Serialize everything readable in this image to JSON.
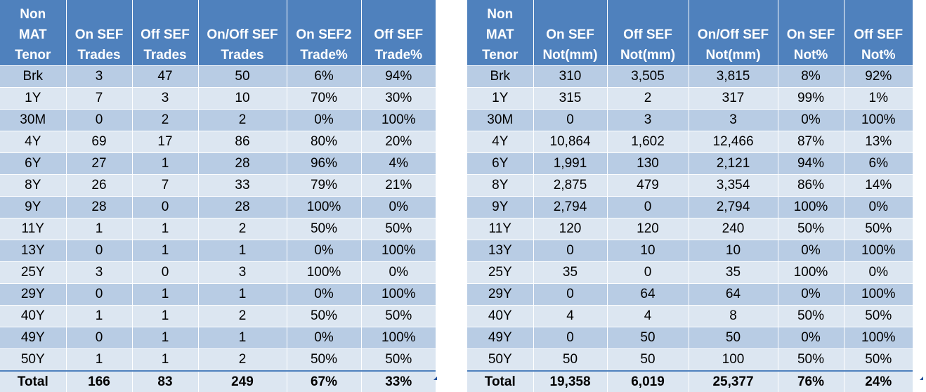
{
  "left_table": {
    "headers": [
      [
        "Non",
        "MAT",
        "Tenor"
      ],
      [
        "On SEF",
        "Trades"
      ],
      [
        "Off SEF",
        "Trades"
      ],
      [
        "On/Off SEF",
        "Trades"
      ],
      [
        "On SEF2",
        "Trade%"
      ],
      [
        "Off SEF",
        "Trade%"
      ]
    ],
    "rows": [
      [
        "Brk",
        "3",
        "47",
        "50",
        "6%",
        "94%"
      ],
      [
        "1Y",
        "7",
        "3",
        "10",
        "70%",
        "30%"
      ],
      [
        "30M",
        "0",
        "2",
        "2",
        "0%",
        "100%"
      ],
      [
        "4Y",
        "69",
        "17",
        "86",
        "80%",
        "20%"
      ],
      [
        "6Y",
        "27",
        "1",
        "28",
        "96%",
        "4%"
      ],
      [
        "8Y",
        "26",
        "7",
        "33",
        "79%",
        "21%"
      ],
      [
        "9Y",
        "28",
        "0",
        "28",
        "100%",
        "0%"
      ],
      [
        "11Y",
        "1",
        "1",
        "2",
        "50%",
        "50%"
      ],
      [
        "13Y",
        "0",
        "1",
        "1",
        "0%",
        "100%"
      ],
      [
        "25Y",
        "3",
        "0",
        "3",
        "100%",
        "0%"
      ],
      [
        "29Y",
        "0",
        "1",
        "1",
        "0%",
        "100%"
      ],
      [
        "40Y",
        "1",
        "1",
        "2",
        "50%",
        "50%"
      ],
      [
        "49Y",
        "0",
        "1",
        "1",
        "0%",
        "100%"
      ],
      [
        "50Y",
        "1",
        "1",
        "2",
        "50%",
        "50%"
      ]
    ],
    "total": [
      "Total",
      "166",
      "83",
      "249",
      "67%",
      "33%"
    ]
  },
  "right_table": {
    "headers": [
      [
        "Non",
        "MAT",
        "Tenor"
      ],
      [
        "On SEF",
        "Not(mm)"
      ],
      [
        "Off SEF",
        "Not(mm)"
      ],
      [
        "On/Off SEF",
        "Not(mm)"
      ],
      [
        "On SEF",
        "Not%"
      ],
      [
        "Off SEF",
        "Not%"
      ]
    ],
    "rows": [
      [
        "Brk",
        "310",
        "3,505",
        "3,815",
        "8%",
        "92%"
      ],
      [
        "1Y",
        "315",
        "2",
        "317",
        "99%",
        "1%"
      ],
      [
        "30M",
        "0",
        "3",
        "3",
        "0%",
        "100%"
      ],
      [
        "4Y",
        "10,864",
        "1,602",
        "12,466",
        "87%",
        "13%"
      ],
      [
        "6Y",
        "1,991",
        "130",
        "2,121",
        "94%",
        "6%"
      ],
      [
        "8Y",
        "2,875",
        "479",
        "3,354",
        "86%",
        "14%"
      ],
      [
        "9Y",
        "2,794",
        "0",
        "2,794",
        "100%",
        "0%"
      ],
      [
        "11Y",
        "120",
        "120",
        "240",
        "50%",
        "50%"
      ],
      [
        "13Y",
        "0",
        "10",
        "10",
        "0%",
        "100%"
      ],
      [
        "25Y",
        "35",
        "0",
        "35",
        "100%",
        "0%"
      ],
      [
        "29Y",
        "0",
        "64",
        "64",
        "0%",
        "100%"
      ],
      [
        "40Y",
        "4",
        "4",
        "8",
        "50%",
        "50%"
      ],
      [
        "49Y",
        "0",
        "50",
        "50",
        "0%",
        "100%"
      ],
      [
        "50Y",
        "50",
        "50",
        "100",
        "50%",
        "50%"
      ]
    ],
    "total": [
      "Total",
      "19,358",
      "6,019",
      "25,377",
      "76%",
      "24%"
    ]
  }
}
